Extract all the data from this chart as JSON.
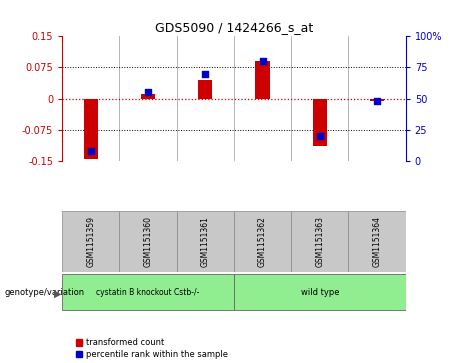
{
  "title": "GDS5090 / 1424266_s_at",
  "samples": [
    "GSM1151359",
    "GSM1151360",
    "GSM1151361",
    "GSM1151362",
    "GSM1151363",
    "GSM1151364"
  ],
  "red_values": [
    -0.145,
    0.01,
    0.045,
    0.09,
    -0.115,
    -0.005
  ],
  "blue_values": [
    8,
    55,
    70,
    80,
    20,
    48
  ],
  "ylim_left": [
    -0.15,
    0.15
  ],
  "ylim_right": [
    0,
    100
  ],
  "yticks_left": [
    -0.15,
    -0.075,
    0,
    0.075,
    0.15
  ],
  "yticks_right": [
    0,
    25,
    50,
    75,
    100
  ],
  "ytick_labels_left": [
    "-0.15",
    "-0.075",
    "0",
    "0.075",
    "0.15"
  ],
  "ytick_labels_right": [
    "0",
    "25",
    "50",
    "75",
    "100%"
  ],
  "group1_label": "cystatin B knockout Cstb-/-",
  "group2_label": "wild type",
  "group1_indices": [
    0,
    1,
    2
  ],
  "group2_indices": [
    3,
    4,
    5
  ],
  "group_color": "#90EE90",
  "bar_color_red": "#CC0000",
  "bar_color_blue": "#0000CC",
  "bar_width": 0.25,
  "bg_color_label": "#C8C8C8",
  "legend_red_label": "transformed count",
  "legend_blue_label": "percentile rank within the sample",
  "genotype_label": "genotype/variation",
  "zero_line_color": "#CC0000",
  "dotted_line_color": "#000000"
}
